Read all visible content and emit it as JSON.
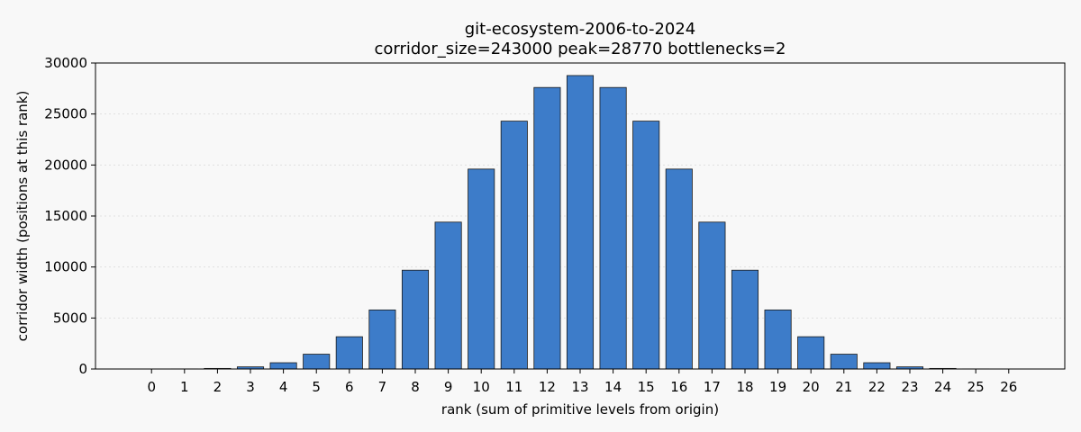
{
  "chart_data": {
    "type": "bar",
    "title": "git-ecosystem-2006-to-2024",
    "subtitle": "corridor_size=243000  peak=28770  bottlenecks=2",
    "xlabel": "rank (sum of primitive levels from origin)",
    "ylabel": "corridor width (positions at this rank)",
    "categories": [
      "0",
      "1",
      "2",
      "3",
      "4",
      "5",
      "6",
      "7",
      "8",
      "9",
      "10",
      "11",
      "12",
      "13",
      "14",
      "15",
      "16",
      "17",
      "18",
      "19",
      "20",
      "21",
      "22",
      "23",
      "24",
      "25",
      "26"
    ],
    "values": [
      1,
      10,
      55,
      210,
      615,
      1452,
      3163,
      5790,
      9687,
      14400,
      19600,
      24300,
      27600,
      28770,
      27600,
      24300,
      19600,
      14400,
      9687,
      5790,
      3163,
      1452,
      615,
      210,
      55,
      10,
      1
    ],
    "ylim": [
      0,
      30000
    ],
    "xlim": [
      -1.7,
      27.7
    ],
    "yticks": [
      0,
      5000,
      10000,
      15000,
      20000,
      25000,
      30000
    ],
    "grid": true,
    "bar_color": "#3d7cc9",
    "edge_color": "#1a1a1a",
    "background_color": "#f8f8f8",
    "grid_color": "#e0e0e0"
  }
}
